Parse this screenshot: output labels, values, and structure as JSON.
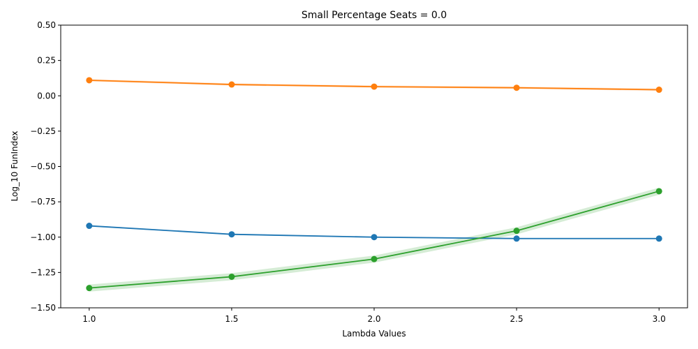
{
  "chart_data": {
    "type": "line",
    "title": "Small Percentage Seats = 0.0",
    "xlabel": "Lambda Values",
    "ylabel": "Log_10 FunIndex",
    "x": [
      1.0,
      1.5,
      2.0,
      2.5,
      3.0
    ],
    "x_tick_labels": [
      "1.0",
      "1.5",
      "2.0",
      "2.5",
      "3.0"
    ],
    "y_tick_labels": [
      "0.50",
      "0.25",
      "0.00",
      "−0.25",
      "−0.50",
      "−0.75",
      "−1.00",
      "−1.25",
      "−1.50"
    ],
    "y_ticks": [
      0.5,
      0.25,
      0.0,
      -0.25,
      -0.5,
      -0.75,
      -1.0,
      -1.25,
      -1.5
    ],
    "xlim": [
      0.9,
      3.1
    ],
    "ylim": [
      -1.5,
      0.5
    ],
    "grid": false,
    "series": [
      {
        "color": "#1f77b4",
        "values": [
          -0.92,
          -0.98,
          -1.0,
          -1.01,
          -1.01
        ],
        "band": 0.005
      },
      {
        "color": "#ff7f0e",
        "values": [
          0.11,
          0.08,
          0.065,
          0.057,
          0.043
        ],
        "band": 0.008
      },
      {
        "color": "#2ca02c",
        "values": [
          -1.36,
          -1.28,
          -1.155,
          -0.955,
          -0.675
        ],
        "band": 0.025
      }
    ]
  }
}
